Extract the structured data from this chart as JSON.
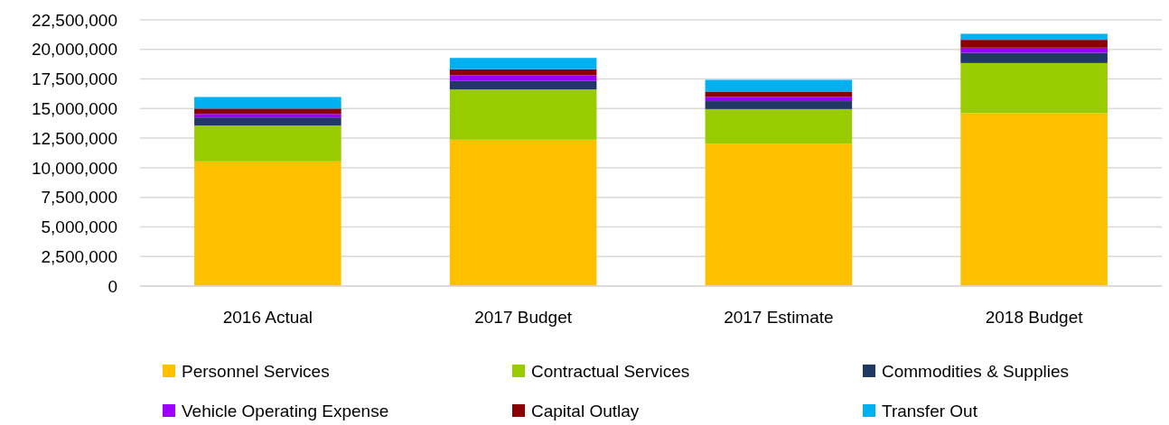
{
  "chart_data": {
    "type": "bar",
    "stacked": true,
    "categories": [
      "2016 Actual",
      "2017 Budget",
      "2017 Estimate",
      "2018 Budget"
    ],
    "series": [
      {
        "name": "Personnel Services",
        "color": "#ffc000",
        "values": [
          10540000,
          12370000,
          12040000,
          14610000
        ]
      },
      {
        "name": "Contractual Services",
        "color": "#99cc00",
        "values": [
          3030000,
          4250000,
          2920000,
          4240000
        ]
      },
      {
        "name": "Commodities & Supplies",
        "color": "#1f3864",
        "values": [
          680000,
          710000,
          670000,
          870000
        ]
      },
      {
        "name": "Vehicle Operating Expense",
        "color": "#9900ff",
        "values": [
          300000,
          480000,
          350000,
          430000
        ]
      },
      {
        "name": "Capital Outlay",
        "color": "#8b0000",
        "values": [
          450000,
          510000,
          460000,
          660000
        ]
      },
      {
        "name": "Transfer Out",
        "color": "#00b0f0",
        "values": [
          980000,
          960000,
          990000,
          510000
        ]
      }
    ],
    "ylim": [
      0,
      22500000
    ],
    "yticks": [
      {
        "value": 0,
        "label": "0"
      },
      {
        "value": 2500000,
        "label": "2,500,000"
      },
      {
        "value": 5000000,
        "label": "5,000,000"
      },
      {
        "value": 7500000,
        "label": "7,500,000"
      },
      {
        "value": 10000000,
        "label": "10,000,000"
      },
      {
        "value": 12500000,
        "label": "12,500,000"
      },
      {
        "value": 15000000,
        "label": "15,000,000"
      },
      {
        "value": 17500000,
        "label": "17,500,000"
      },
      {
        "value": 20000000,
        "label": "20,000,000"
      },
      {
        "value": 22500000,
        "label": "22,500,000"
      }
    ],
    "grid": "y",
    "legend": "bottom"
  }
}
